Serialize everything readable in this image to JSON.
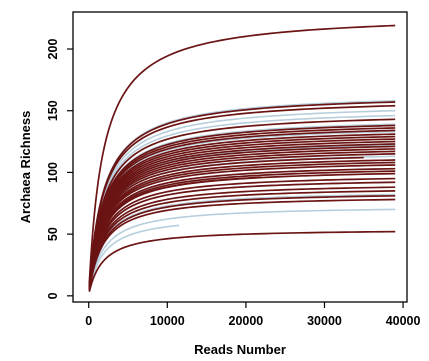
{
  "chart_data": {
    "type": "line",
    "title": "",
    "xlabel": "Reads Number",
    "ylabel": "Archaea Richness",
    "xlim": [
      -2000,
      40500
    ],
    "ylim": [
      -5,
      230
    ],
    "x_ticks": [
      0,
      10000,
      20000,
      30000,
      40000
    ],
    "x_tick_labels": [
      "0",
      "10000",
      "20000",
      "30000",
      "40000"
    ],
    "y_ticks": [
      0,
      50,
      100,
      150,
      200
    ],
    "y_tick_labels": [
      "0",
      "50",
      "100",
      "150",
      "200"
    ],
    "grid": false,
    "legend": "none",
    "colors": {
      "dark": "#6b1414",
      "light": "#b7cedc",
      "axis": "#000000"
    },
    "series": [
      {
        "color": "light",
        "x_end": 39000,
        "y_end": 158
      },
      {
        "color": "light",
        "x_end": 39000,
        "y_end": 150
      },
      {
        "color": "light",
        "x_end": 39000,
        "y_end": 146
      },
      {
        "color": "light",
        "x_end": 39000,
        "y_end": 139
      },
      {
        "color": "light",
        "x_end": 39000,
        "y_end": 133
      },
      {
        "color": "light",
        "x_end": 39000,
        "y_end": 122
      },
      {
        "color": "light",
        "x_end": 39000,
        "y_end": 113
      },
      {
        "color": "light",
        "x_end": 39000,
        "y_end": 103
      },
      {
        "color": "light",
        "x_end": 39000,
        "y_end": 92
      },
      {
        "color": "light",
        "x_end": 39000,
        "y_end": 82
      },
      {
        "color": "light",
        "x_end": 39000,
        "y_end": 70
      },
      {
        "color": "light",
        "x_end": 11500,
        "y_end": 57
      },
      {
        "color": "dark",
        "x_end": 39000,
        "y_end": 219
      },
      {
        "color": "dark",
        "x_end": 39000,
        "y_end": 157
      },
      {
        "color": "dark",
        "x_end": 39000,
        "y_end": 154
      },
      {
        "color": "dark",
        "x_end": 39000,
        "y_end": 143
      },
      {
        "color": "dark",
        "x_end": 39000,
        "y_end": 138
      },
      {
        "color": "dark",
        "x_end": 39000,
        "y_end": 136
      },
      {
        "color": "dark",
        "x_end": 39000,
        "y_end": 134
      },
      {
        "color": "dark",
        "x_end": 39000,
        "y_end": 131
      },
      {
        "color": "dark",
        "x_end": 39000,
        "y_end": 129
      },
      {
        "color": "dark",
        "x_end": 39000,
        "y_end": 127
      },
      {
        "color": "dark",
        "x_end": 39000,
        "y_end": 125
      },
      {
        "color": "dark",
        "x_end": 39000,
        "y_end": 123
      },
      {
        "color": "dark",
        "x_end": 39000,
        "y_end": 121
      },
      {
        "color": "dark",
        "x_end": 39000,
        "y_end": 119
      },
      {
        "color": "dark",
        "x_end": 39000,
        "y_end": 117
      },
      {
        "color": "dark",
        "x_end": 39000,
        "y_end": 115
      },
      {
        "color": "dark",
        "x_end": 35000,
        "y_end": 112
      },
      {
        "color": "dark",
        "x_end": 39000,
        "y_end": 110
      },
      {
        "color": "dark",
        "x_end": 39000,
        "y_end": 108
      },
      {
        "color": "dark",
        "x_end": 39000,
        "y_end": 106
      },
      {
        "color": "dark",
        "x_end": 39000,
        "y_end": 103
      },
      {
        "color": "dark",
        "x_end": 39000,
        "y_end": 101
      },
      {
        "color": "dark",
        "x_end": 39000,
        "y_end": 99
      },
      {
        "color": "dark",
        "x_end": 22000,
        "y_end": 96
      },
      {
        "color": "dark",
        "x_end": 39000,
        "y_end": 95
      },
      {
        "color": "dark",
        "x_end": 39000,
        "y_end": 92
      },
      {
        "color": "dark",
        "x_end": 39000,
        "y_end": 88
      },
      {
        "color": "dark",
        "x_end": 39000,
        "y_end": 85
      },
      {
        "color": "dark",
        "x_end": 39000,
        "y_end": 81
      },
      {
        "color": "dark",
        "x_end": 39000,
        "y_end": 78
      },
      {
        "color": "dark",
        "x_end": 39000,
        "y_end": 52
      }
    ]
  }
}
